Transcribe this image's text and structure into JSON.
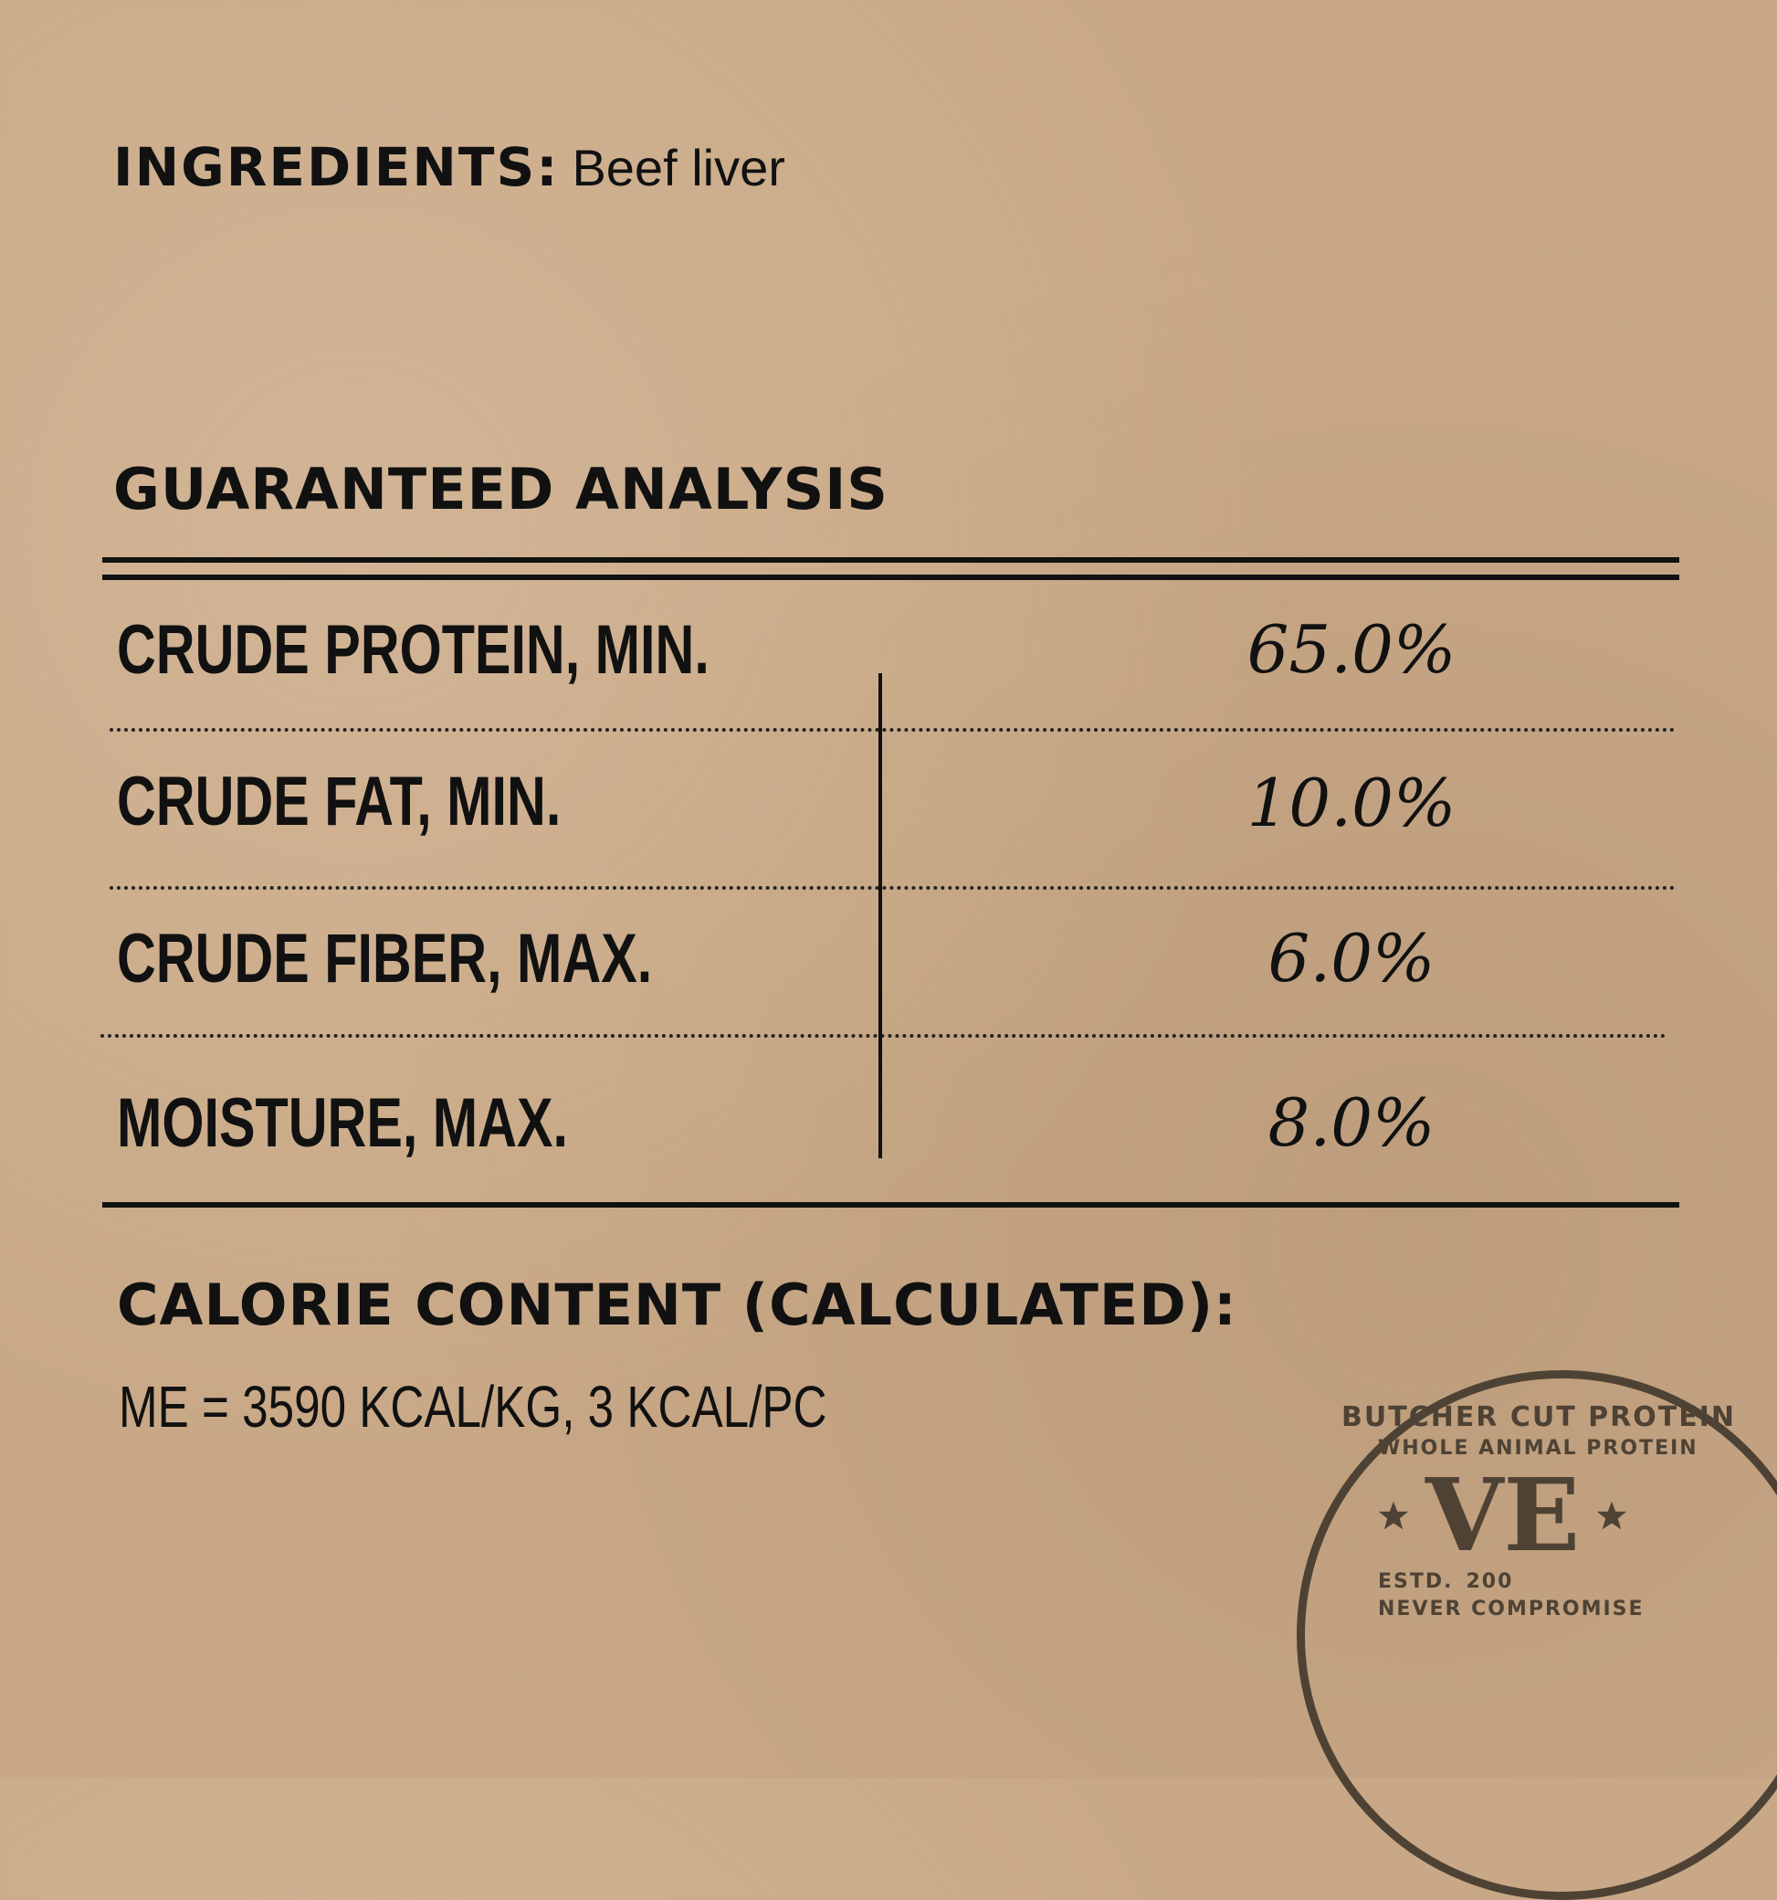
{
  "ingredients": {
    "label": "INGREDIENTS:",
    "value": "Beef liver"
  },
  "analysis": {
    "title": "GUARANTEED ANALYSIS",
    "rows": [
      {
        "label": "CRUDE PROTEIN, MIN.",
        "value": "65.0%"
      },
      {
        "label": "CRUDE FAT, MIN.",
        "value": "10.0%"
      },
      {
        "label": "CRUDE FIBER, MAX.",
        "value": "6.0%"
      },
      {
        "label": "MOISTURE, MAX.",
        "value": "8.0%"
      }
    ]
  },
  "calories": {
    "title": "CALORIE CONTENT (CALCULATED):",
    "value": "ME = 3590 KCAL/KG, 3 KCAL/PC"
  },
  "stamp": {
    "outer_text": "BUTCHER CUT PROTEIN",
    "inner_text": "WHOLE ANIMAL PROTEIN",
    "bottom_text": "NEVER COMPROMISE",
    "estd": "ESTD.",
    "year": "200",
    "monogram": "VE",
    "color": "#4e4234"
  },
  "colors": {
    "background": "#c8a886",
    "ink": "#111111"
  }
}
